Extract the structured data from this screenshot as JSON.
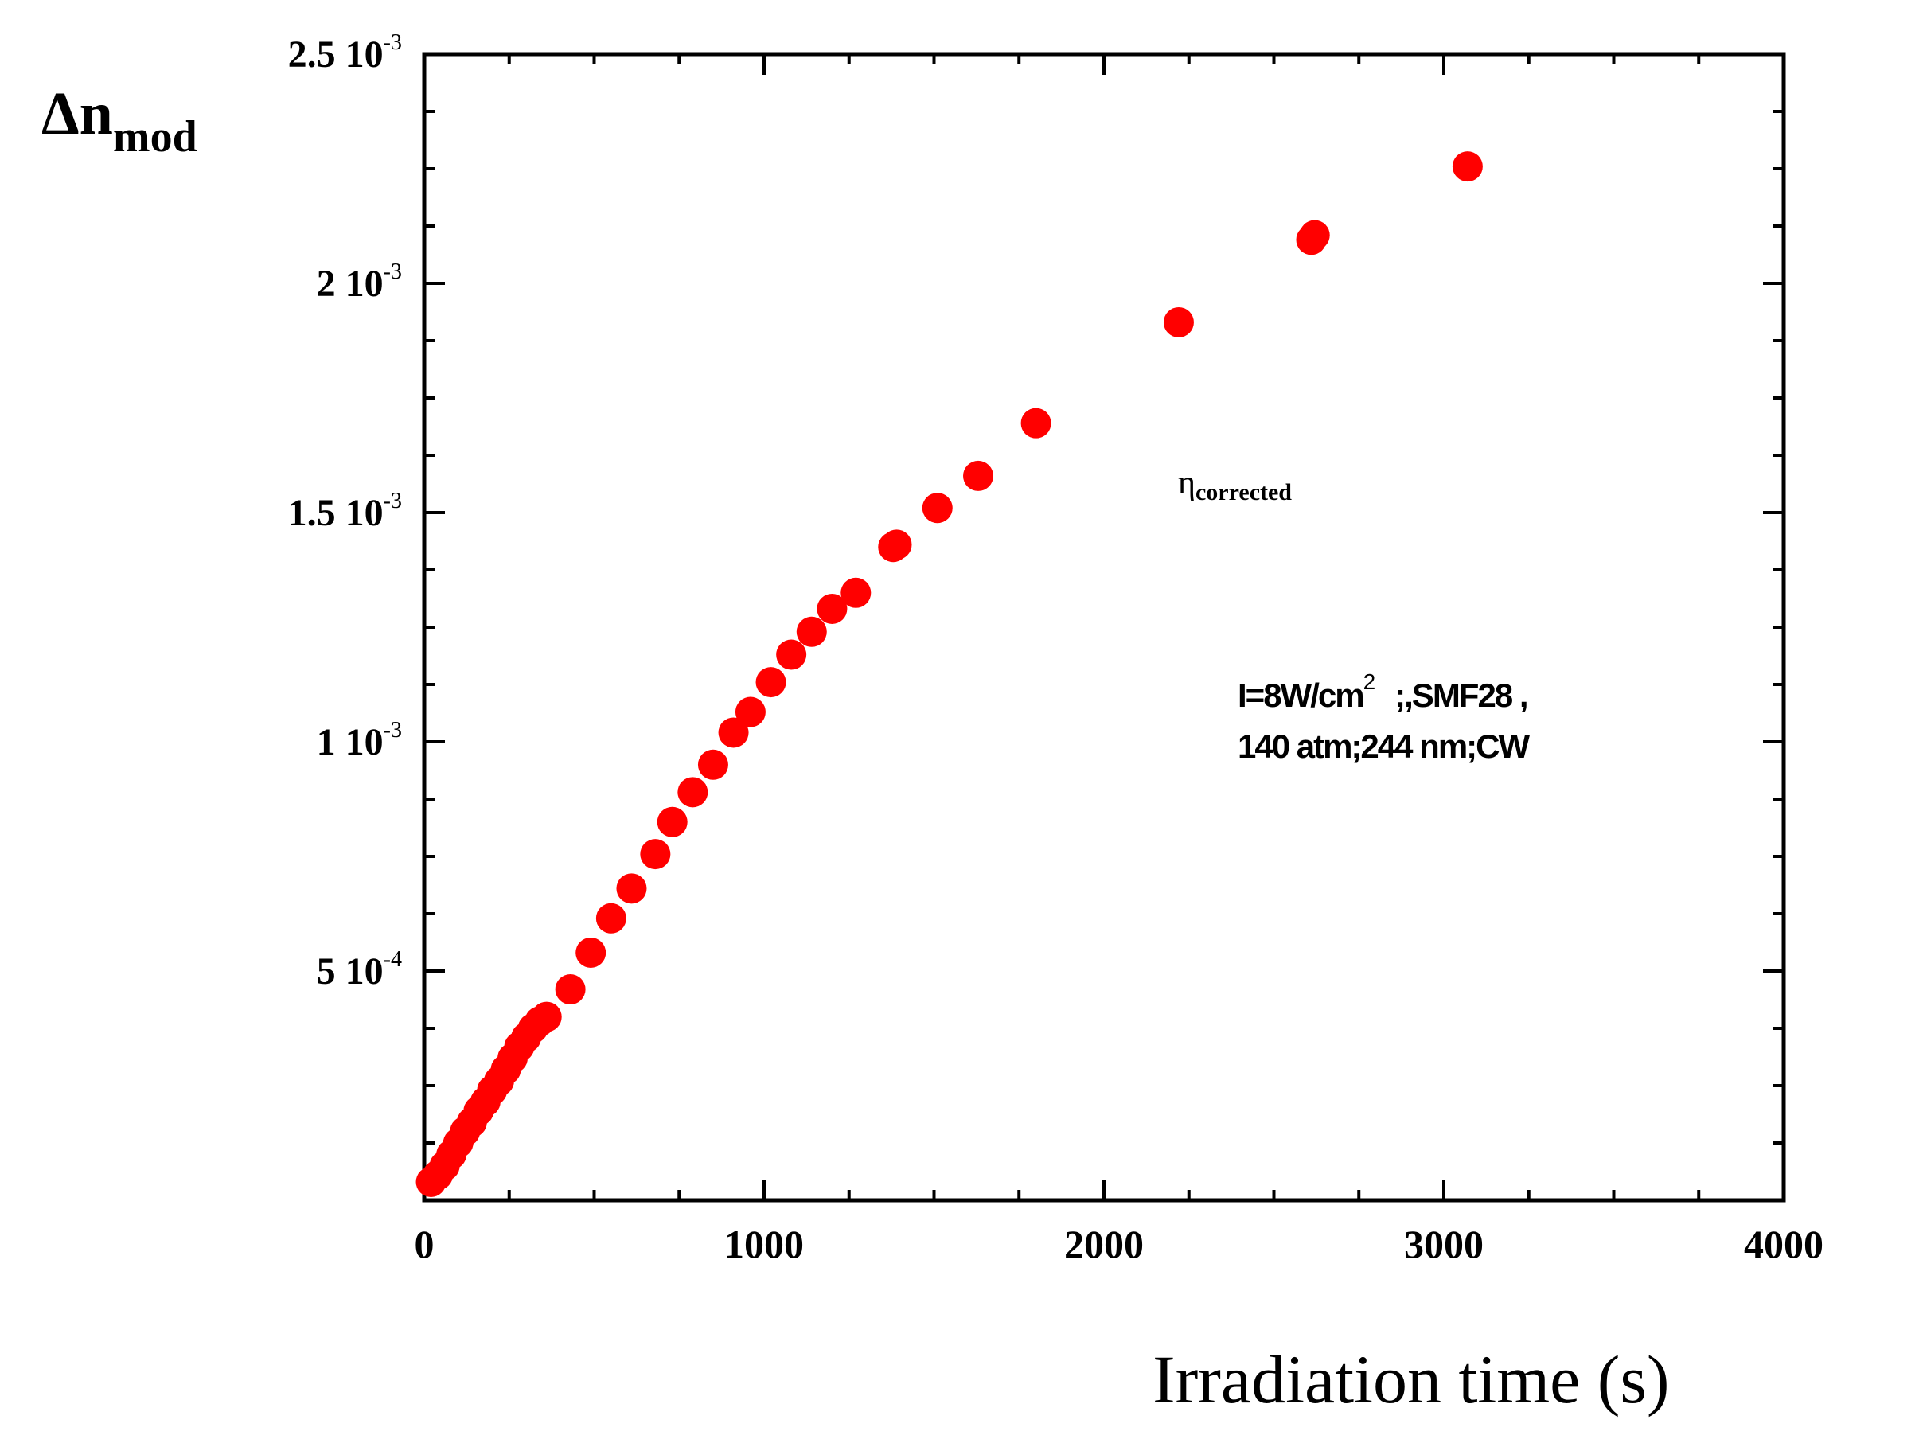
{
  "chart_data": {
    "type": "scatter",
    "title": "",
    "xlabel": "Irradiation time (s)",
    "ylabel": {
      "main": "Δn",
      "sub": "mod"
    },
    "xlim": [
      0,
      4000
    ],
    "ylim": [
      0,
      0.0025
    ],
    "x_ticks": [
      {
        "value": 0,
        "label": "0"
      },
      {
        "value": 1000,
        "label": "1000"
      },
      {
        "value": 2000,
        "label": "2000"
      },
      {
        "value": 3000,
        "label": "3000"
      },
      {
        "value": 4000,
        "label": "4000"
      }
    ],
    "y_ticks": [
      {
        "value": 0.0005,
        "mant": "5 10",
        "exp": "-4"
      },
      {
        "value": 0.001,
        "mant": "1 10",
        "exp": "-3"
      },
      {
        "value": 0.0015,
        "mant": "1.5 10",
        "exp": "-3"
      },
      {
        "value": 0.002,
        "mant": "2 10",
        "exp": "-3"
      },
      {
        "value": 0.0025,
        "mant": "2.5 10",
        "exp": "-3"
      }
    ],
    "grid": false,
    "marker_color": "#ff0000",
    "annotations": {
      "eta": {
        "symbol": "η",
        "sub": "corrected"
      },
      "conditions_line1_a": "I=8W/cm",
      "conditions_line1_sup": "2",
      "conditions_line1_b": ";,SMF28 ,",
      "conditions_line2": "140 atm;244 nm;CW"
    },
    "series": [
      {
        "name": "η corrected",
        "x": [
          20,
          40,
          60,
          80,
          100,
          120,
          140,
          160,
          180,
          200,
          220,
          240,
          260,
          280,
          300,
          320,
          340,
          360,
          430,
          490,
          550,
          610,
          680,
          730,
          790,
          850,
          910,
          960,
          1020,
          1080,
          1140,
          1200,
          1270,
          1380,
          1390,
          1510,
          1630,
          1800,
          2220,
          2610,
          2620,
          3070
        ],
        "y": [
          4e-05,
          5.5e-05,
          7.5e-05,
          0.0001,
          0.000125,
          0.00015,
          0.00017,
          0.000195,
          0.000215,
          0.00024,
          0.00026,
          0.000285,
          0.00031,
          0.000335,
          0.000355,
          0.000375,
          0.00039,
          0.0004,
          0.00046,
          0.00054,
          0.000615,
          0.00068,
          0.000755,
          0.000825,
          0.00089,
          0.00095,
          0.00102,
          0.001065,
          0.00113,
          0.00119,
          0.00124,
          0.00129,
          0.001325,
          0.001425,
          0.00143,
          0.00151,
          0.00158,
          0.001695,
          0.001915,
          0.002095,
          0.002105,
          0.002255
        ]
      }
    ]
  }
}
